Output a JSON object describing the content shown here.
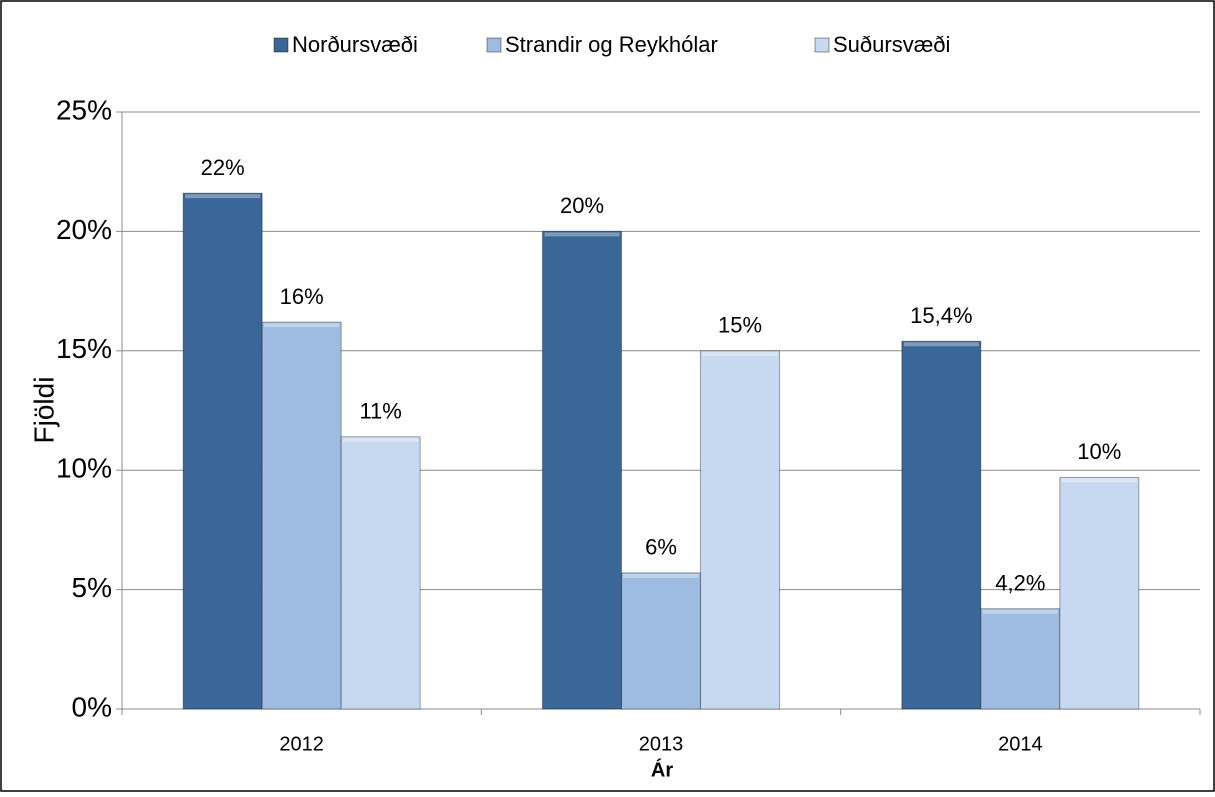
{
  "chart_data": {
    "type": "bar",
    "categories": [
      "2012",
      "2013",
      "2014"
    ],
    "series": [
      {
        "name": "Norðursvæði",
        "color": "#3b6698",
        "values": [
          21.6,
          20.0,
          15.4
        ],
        "value_labels": [
          "22%",
          "20%",
          "15,4%"
        ]
      },
      {
        "name": "Strandir og Reykhólar",
        "color": "#9ebce2",
        "values": [
          16.2,
          5.7,
          4.2
        ],
        "value_labels": [
          "16%",
          "6%",
          "4,2%"
        ]
      },
      {
        "name": "Suðursvæði",
        "color": "#c6d9f0",
        "values": [
          11.4,
          15.0,
          9.7
        ],
        "value_labels": [
          "11%",
          "15%",
          "10%"
        ]
      }
    ],
    "ylabel": "Fjöldi",
    "xlabel": "Ár",
    "ylim": [
      0,
      25
    ],
    "yticks": [
      {
        "value": 0,
        "label": "0%"
      },
      {
        "value": 5,
        "label": "5%"
      },
      {
        "value": 10,
        "label": "10%"
      },
      {
        "value": 15,
        "label": "15%"
      },
      {
        "value": 20,
        "label": "20%"
      },
      {
        "value": 25,
        "label": "25%"
      }
    ],
    "grid": true,
    "legend": "top"
  }
}
